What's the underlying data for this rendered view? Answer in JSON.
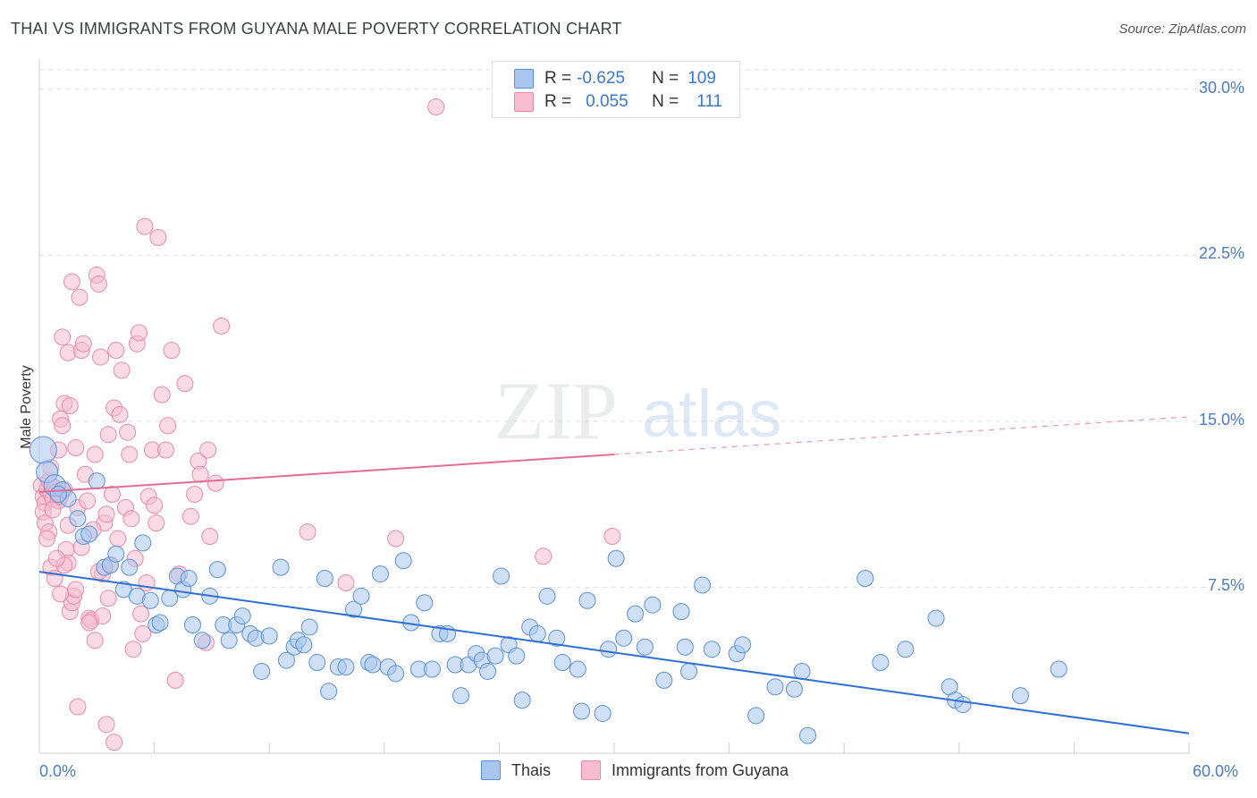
{
  "title": "THAI VS IMMIGRANTS FROM GUYANA MALE POVERTY CORRELATION CHART",
  "source": "Source: ZipAtlas.com",
  "watermark": {
    "zip": "ZIP",
    "atlas": "atlas"
  },
  "colors": {
    "blue_fill": "#a8c6ef",
    "blue_stroke": "#5b8fd8",
    "blue_line": "#2f6fd1",
    "pink_fill": "#f6bcd0",
    "pink_stroke": "#e98aaa",
    "pink_line": "#e56b97",
    "grid": "#dedede",
    "axis_text": "#4a7cc7"
  },
  "legend": {
    "rows": [
      {
        "r_label": "R =",
        "r_value": "-0.625",
        "n_label": "N =",
        "n_value": "109",
        "color": "#a8c6ef"
      },
      {
        "r_label": "R =",
        "r_value": "0.055",
        "n_label": "N =",
        "n_value": "111",
        "color": "#f6bcd0"
      }
    ]
  },
  "bottom_legend": [
    {
      "label": "Thais",
      "color": "#a8c6ef"
    },
    {
      "label": "Immigrants from Guyana",
      "color": "#f6bcd0"
    }
  ],
  "chart_data": {
    "type": "scatter",
    "title": "THAI VS IMMIGRANTS FROM GUYANA MALE POVERTY CORRELATION CHART",
    "xlabel": "",
    "ylabel": "Male Poverty",
    "xlim": [
      0,
      60
    ],
    "ylim": [
      0,
      31.2
    ],
    "x_tick_labels": [
      "0.0%",
      "60.0%"
    ],
    "y_ticks": [
      7.5,
      15.0,
      22.5,
      30.0
    ],
    "y_tick_labels": [
      "7.5%",
      "15.0%",
      "22.5%",
      "30.0%"
    ],
    "series": [
      {
        "name": "Thais",
        "r": -0.625,
        "n": 109,
        "trend": {
          "x0": 0,
          "y0": 8.2,
          "x1": 60,
          "y1": 0.9,
          "dashed_from": null
        },
        "points": [
          [
            0.2,
            13.7
          ],
          [
            0.4,
            12.7
          ],
          [
            0.8,
            12.1
          ],
          [
            1.2,
            11.9
          ],
          [
            1.5,
            11.5
          ],
          [
            2.0,
            10.6
          ],
          [
            2.3,
            9.8
          ],
          [
            2.6,
            9.9
          ],
          [
            3.0,
            12.3
          ],
          [
            3.4,
            8.4
          ],
          [
            3.7,
            8.5
          ],
          [
            4.0,
            9.0
          ],
          [
            4.4,
            7.4
          ],
          [
            4.7,
            8.4
          ],
          [
            5.1,
            7.1
          ],
          [
            5.4,
            9.5
          ],
          [
            5.8,
            6.9
          ],
          [
            6.1,
            5.8
          ],
          [
            6.3,
            5.9
          ],
          [
            6.8,
            7.0
          ],
          [
            7.2,
            8.0
          ],
          [
            7.5,
            7.4
          ],
          [
            7.8,
            7.9
          ],
          [
            8.0,
            5.8
          ],
          [
            8.5,
            5.1
          ],
          [
            8.9,
            7.1
          ],
          [
            9.3,
            8.3
          ],
          [
            9.6,
            5.8
          ],
          [
            9.9,
            5.1
          ],
          [
            10.3,
            5.8
          ],
          [
            10.6,
            6.2
          ],
          [
            11.0,
            5.4
          ],
          [
            11.3,
            5.2
          ],
          [
            11.6,
            3.7
          ],
          [
            12.0,
            5.3
          ],
          [
            12.6,
            8.4
          ],
          [
            12.9,
            4.2
          ],
          [
            13.3,
            4.8
          ],
          [
            13.5,
            5.1
          ],
          [
            13.8,
            4.9
          ],
          [
            14.1,
            5.7
          ],
          [
            14.5,
            4.1
          ],
          [
            14.9,
            7.9
          ],
          [
            15.1,
            2.8
          ],
          [
            15.6,
            3.9
          ],
          [
            16.0,
            3.9
          ],
          [
            16.4,
            6.5
          ],
          [
            16.8,
            7.1
          ],
          [
            17.2,
            4.1
          ],
          [
            17.4,
            4.0
          ],
          [
            17.8,
            8.1
          ],
          [
            18.2,
            3.9
          ],
          [
            18.6,
            3.6
          ],
          [
            19.0,
            8.7
          ],
          [
            19.4,
            5.9
          ],
          [
            19.8,
            3.8
          ],
          [
            20.1,
            6.8
          ],
          [
            20.5,
            3.8
          ],
          [
            20.9,
            5.4
          ],
          [
            21.3,
            5.4
          ],
          [
            21.7,
            4.0
          ],
          [
            22.0,
            2.6
          ],
          [
            22.4,
            4.0
          ],
          [
            22.8,
            4.5
          ],
          [
            23.1,
            4.2
          ],
          [
            23.4,
            3.7
          ],
          [
            23.8,
            4.4
          ],
          [
            24.1,
            8.0
          ],
          [
            24.5,
            4.9
          ],
          [
            24.9,
            4.4
          ],
          [
            25.2,
            2.4
          ],
          [
            25.6,
            5.7
          ],
          [
            26.0,
            5.4
          ],
          [
            26.5,
            7.1
          ],
          [
            27.0,
            5.2
          ],
          [
            27.3,
            4.1
          ],
          [
            28.1,
            3.8
          ],
          [
            28.3,
            1.9
          ],
          [
            28.6,
            6.9
          ],
          [
            29.4,
            1.8
          ],
          [
            29.7,
            4.7
          ],
          [
            30.1,
            8.8
          ],
          [
            30.5,
            5.2
          ],
          [
            31.1,
            6.3
          ],
          [
            31.6,
            4.8
          ],
          [
            32.0,
            6.7
          ],
          [
            32.6,
            3.3
          ],
          [
            33.5,
            6.4
          ],
          [
            33.7,
            4.8
          ],
          [
            33.9,
            3.7
          ],
          [
            34.6,
            7.6
          ],
          [
            35.1,
            4.7
          ],
          [
            36.4,
            4.5
          ],
          [
            36.7,
            4.9
          ],
          [
            37.4,
            1.7
          ],
          [
            38.4,
            3.0
          ],
          [
            39.4,
            2.9
          ],
          [
            39.8,
            3.7
          ],
          [
            40.1,
            0.8
          ],
          [
            43.1,
            7.9
          ],
          [
            43.9,
            4.1
          ],
          [
            45.2,
            4.7
          ],
          [
            46.8,
            6.1
          ],
          [
            47.5,
            3.0
          ],
          [
            47.8,
            2.4
          ],
          [
            48.2,
            2.2
          ],
          [
            51.2,
            2.6
          ],
          [
            53.2,
            3.8
          ],
          [
            1.0,
            11.7
          ]
        ]
      },
      {
        "name": "Immigrants from Guyana",
        "r": 0.055,
        "n": 111,
        "trend": {
          "x0": 0,
          "y0": 11.8,
          "x1": 60,
          "y1": 15.2,
          "dashed_from": 30
        },
        "points": [
          [
            0.1,
            12.1
          ],
          [
            0.2,
            11.6
          ],
          [
            0.3,
            11.3
          ],
          [
            0.4,
            11.9
          ],
          [
            0.5,
            12.3
          ],
          [
            0.6,
            11.7
          ],
          [
            0.7,
            11.5
          ],
          [
            0.8,
            12.0
          ],
          [
            0.9,
            11.8
          ],
          [
            1.0,
            11.4
          ],
          [
            0.2,
            10.9
          ],
          [
            0.3,
            10.4
          ],
          [
            0.5,
            10.0
          ],
          [
            0.7,
            11.0
          ],
          [
            1.1,
            11.6
          ],
          [
            1.3,
            11.9
          ],
          [
            0.4,
            9.7
          ],
          [
            0.6,
            8.4
          ],
          [
            0.8,
            7.9
          ],
          [
            1.0,
            13.7
          ],
          [
            1.1,
            15.1
          ],
          [
            1.2,
            14.8
          ],
          [
            1.3,
            15.8
          ],
          [
            1.4,
            9.2
          ],
          [
            1.5,
            8.6
          ],
          [
            1.6,
            6.4
          ],
          [
            1.7,
            6.8
          ],
          [
            1.8,
            7.1
          ],
          [
            1.9,
            7.4
          ],
          [
            2.0,
            11.1
          ],
          [
            1.2,
            18.8
          ],
          [
            1.5,
            18.1
          ],
          [
            1.6,
            15.7
          ],
          [
            1.7,
            21.3
          ],
          [
            1.9,
            13.8
          ],
          [
            2.1,
            20.6
          ],
          [
            2.2,
            18.2
          ],
          [
            2.3,
            18.5
          ],
          [
            2.5,
            11.4
          ],
          [
            2.6,
            6.1
          ],
          [
            2.7,
            6.0
          ],
          [
            2.9,
            13.5
          ],
          [
            3.0,
            21.6
          ],
          [
            3.1,
            21.2
          ],
          [
            3.2,
            17.9
          ],
          [
            3.3,
            8.1
          ],
          [
            3.4,
            10.4
          ],
          [
            3.5,
            10.8
          ],
          [
            3.6,
            14.4
          ],
          [
            3.7,
            8.5
          ],
          [
            3.9,
            15.6
          ],
          [
            4.0,
            18.2
          ],
          [
            4.2,
            15.3
          ],
          [
            4.3,
            17.3
          ],
          [
            4.5,
            11.1
          ],
          [
            4.6,
            14.5
          ],
          [
            4.7,
            13.5
          ],
          [
            4.8,
            10.6
          ],
          [
            4.9,
            4.7
          ],
          [
            5.0,
            8.8
          ],
          [
            5.1,
            18.5
          ],
          [
            5.2,
            19.0
          ],
          [
            5.3,
            6.3
          ],
          [
            5.4,
            5.4
          ],
          [
            5.5,
            23.8
          ],
          [
            5.7,
            11.6
          ],
          [
            5.9,
            13.7
          ],
          [
            6.0,
            11.2
          ],
          [
            6.1,
            10.4
          ],
          [
            6.2,
            23.3
          ],
          [
            6.4,
            16.2
          ],
          [
            6.6,
            13.7
          ],
          [
            6.7,
            14.8
          ],
          [
            6.9,
            18.2
          ],
          [
            7.1,
            3.3
          ],
          [
            7.3,
            8.1
          ],
          [
            7.6,
            16.7
          ],
          [
            7.9,
            10.7
          ],
          [
            8.1,
            11.7
          ],
          [
            8.3,
            13.2
          ],
          [
            8.4,
            12.6
          ],
          [
            8.7,
            5.0
          ],
          [
            8.8,
            13.7
          ],
          [
            8.9,
            9.8
          ],
          [
            9.2,
            12.2
          ],
          [
            9.5,
            19.3
          ],
          [
            3.8,
            11.7
          ],
          [
            2.4,
            12.6
          ],
          [
            2.8,
            10.1
          ],
          [
            3.3,
            6.2
          ],
          [
            3.5,
            1.3
          ],
          [
            3.9,
            0.5
          ],
          [
            2.0,
            2.1
          ],
          [
            2.2,
            9.3
          ],
          [
            2.6,
            5.9
          ],
          [
            2.9,
            5.1
          ],
          [
            3.1,
            8.2
          ],
          [
            3.6,
            7.0
          ],
          [
            4.1,
            9.7
          ],
          [
            5.6,
            7.7
          ],
          [
            14.0,
            10.0
          ],
          [
            16.0,
            7.7
          ],
          [
            18.6,
            9.7
          ],
          [
            26.3,
            8.9
          ],
          [
            29.9,
            9.8
          ],
          [
            20.7,
            29.2
          ],
          [
            1.3,
            8.5
          ],
          [
            1.5,
            10.3
          ],
          [
            0.9,
            8.8
          ],
          [
            1.1,
            7.2
          ],
          [
            0.6,
            12.9
          ]
        ]
      }
    ]
  }
}
